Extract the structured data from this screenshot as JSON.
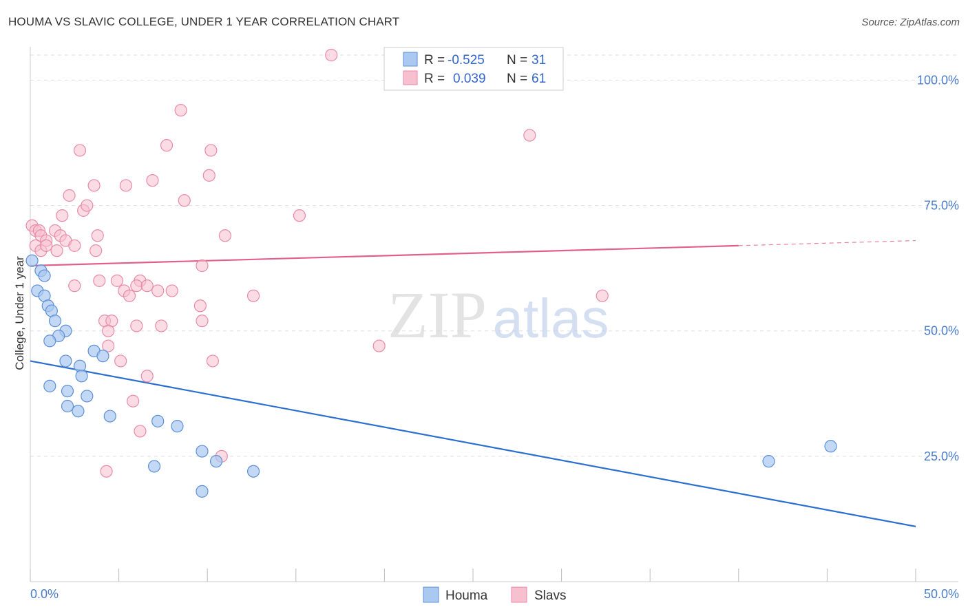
{
  "title": "HOUMA VS SLAVIC COLLEGE, UNDER 1 YEAR CORRELATION CHART",
  "source": "Source: ZipAtlas.com",
  "watermark": {
    "zip": "ZIP",
    "atlas": "atlas"
  },
  "colors": {
    "houma_fill": "#aac8f0",
    "houma_stroke": "#5b8fd8",
    "houma_line": "#2a6fd0",
    "slavs_fill": "#f7c0d0",
    "slavs_stroke": "#e88aa8",
    "slavs_line": "#e0608a",
    "axis_text": "#4a7cc9",
    "grid": "#dddddd"
  },
  "legend": {
    "rows": [
      {
        "r_label": "R =",
        "r_value": "-0.525",
        "n_label": "N =",
        "n_value": "31"
      },
      {
        "r_label": "R =",
        "r_value": "0.039",
        "n_label": "N =",
        "n_value": "61"
      }
    ]
  },
  "chart_data": {
    "type": "scatter",
    "title": "HOUMA VS SLAVIC COLLEGE, UNDER 1 YEAR CORRELATION CHART",
    "xlabel": "",
    "ylabel": "College, Under 1 year",
    "xlim": [
      0,
      50
    ],
    "ylim": [
      0,
      105
    ],
    "x_tick_labels": [
      "0.0%",
      "50.0%"
    ],
    "y_tick_labels": [
      "25.0%",
      "50.0%",
      "75.0%",
      "100.0%"
    ],
    "y_ticks": [
      25,
      50,
      75,
      100
    ],
    "grid": true,
    "legend_position": "bottom",
    "series": [
      {
        "name": "Houma",
        "points": [
          [
            0.1,
            64
          ],
          [
            0.6,
            62
          ],
          [
            0.8,
            61
          ],
          [
            0.4,
            58
          ],
          [
            0.8,
            57
          ],
          [
            1.0,
            55
          ],
          [
            1.2,
            54
          ],
          [
            1.4,
            52
          ],
          [
            2.0,
            50
          ],
          [
            1.6,
            49
          ],
          [
            1.1,
            48
          ],
          [
            3.6,
            46
          ],
          [
            4.1,
            45
          ],
          [
            2.0,
            44
          ],
          [
            2.8,
            43
          ],
          [
            2.9,
            41
          ],
          [
            1.1,
            39
          ],
          [
            2.1,
            38
          ],
          [
            3.2,
            37
          ],
          [
            2.1,
            35
          ],
          [
            2.7,
            34
          ],
          [
            4.5,
            33
          ],
          [
            7.2,
            32
          ],
          [
            8.3,
            31
          ],
          [
            9.7,
            26
          ],
          [
            10.5,
            24
          ],
          [
            7.0,
            23
          ],
          [
            12.6,
            22
          ],
          [
            9.7,
            18
          ],
          [
            41.7,
            24
          ],
          [
            45.2,
            27
          ]
        ],
        "trend": {
          "x": [
            0,
            50
          ],
          "y": [
            44,
            11
          ]
        }
      },
      {
        "name": "Slavs",
        "points": [
          [
            17.0,
            105
          ],
          [
            8.5,
            94
          ],
          [
            28.2,
            89
          ],
          [
            2.8,
            86
          ],
          [
            7.7,
            87
          ],
          [
            10.2,
            86
          ],
          [
            10.1,
            81
          ],
          [
            5.4,
            79
          ],
          [
            6.9,
            80
          ],
          [
            2.2,
            77
          ],
          [
            3.6,
            79
          ],
          [
            3.0,
            74
          ],
          [
            8.7,
            76
          ],
          [
            3.2,
            75
          ],
          [
            1.8,
            73
          ],
          [
            15.2,
            73
          ],
          [
            0.1,
            71
          ],
          [
            0.3,
            70
          ],
          [
            0.5,
            70
          ],
          [
            0.6,
            69
          ],
          [
            0.9,
            68
          ],
          [
            1.4,
            70
          ],
          [
            1.7,
            69
          ],
          [
            2.0,
            68
          ],
          [
            3.8,
            69
          ],
          [
            11.0,
            69
          ],
          [
            0.3,
            67
          ],
          [
            0.6,
            66
          ],
          [
            0.9,
            67
          ],
          [
            1.5,
            66
          ],
          [
            2.5,
            67
          ],
          [
            3.7,
            66
          ],
          [
            9.7,
            63
          ],
          [
            3.9,
            60
          ],
          [
            4.9,
            60
          ],
          [
            6.2,
            60
          ],
          [
            6.0,
            59
          ],
          [
            7.2,
            58
          ],
          [
            2.5,
            59
          ],
          [
            5.3,
            58
          ],
          [
            8.0,
            58
          ],
          [
            6.6,
            59
          ],
          [
            12.6,
            57
          ],
          [
            32.3,
            57
          ],
          [
            5.6,
            57
          ],
          [
            6.0,
            51
          ],
          [
            9.6,
            55
          ],
          [
            9.7,
            52
          ],
          [
            4.2,
            52
          ],
          [
            4.6,
            52
          ],
          [
            7.4,
            51
          ],
          [
            4.4,
            50
          ],
          [
            19.7,
            47
          ],
          [
            4.4,
            47
          ],
          [
            10.3,
            44
          ],
          [
            5.1,
            44
          ],
          [
            6.6,
            41
          ],
          [
            5.8,
            36
          ],
          [
            6.2,
            30
          ],
          [
            10.8,
            25
          ],
          [
            4.3,
            22
          ]
        ],
        "trend": {
          "x": [
            0,
            40
          ],
          "y": [
            63,
            67
          ]
        },
        "trend_dashed": {
          "x": [
            40,
            50
          ],
          "y": [
            67,
            68
          ]
        }
      }
    ]
  },
  "bottom_legend": [
    {
      "name": "Houma"
    },
    {
      "name": "Slavs"
    }
  ]
}
